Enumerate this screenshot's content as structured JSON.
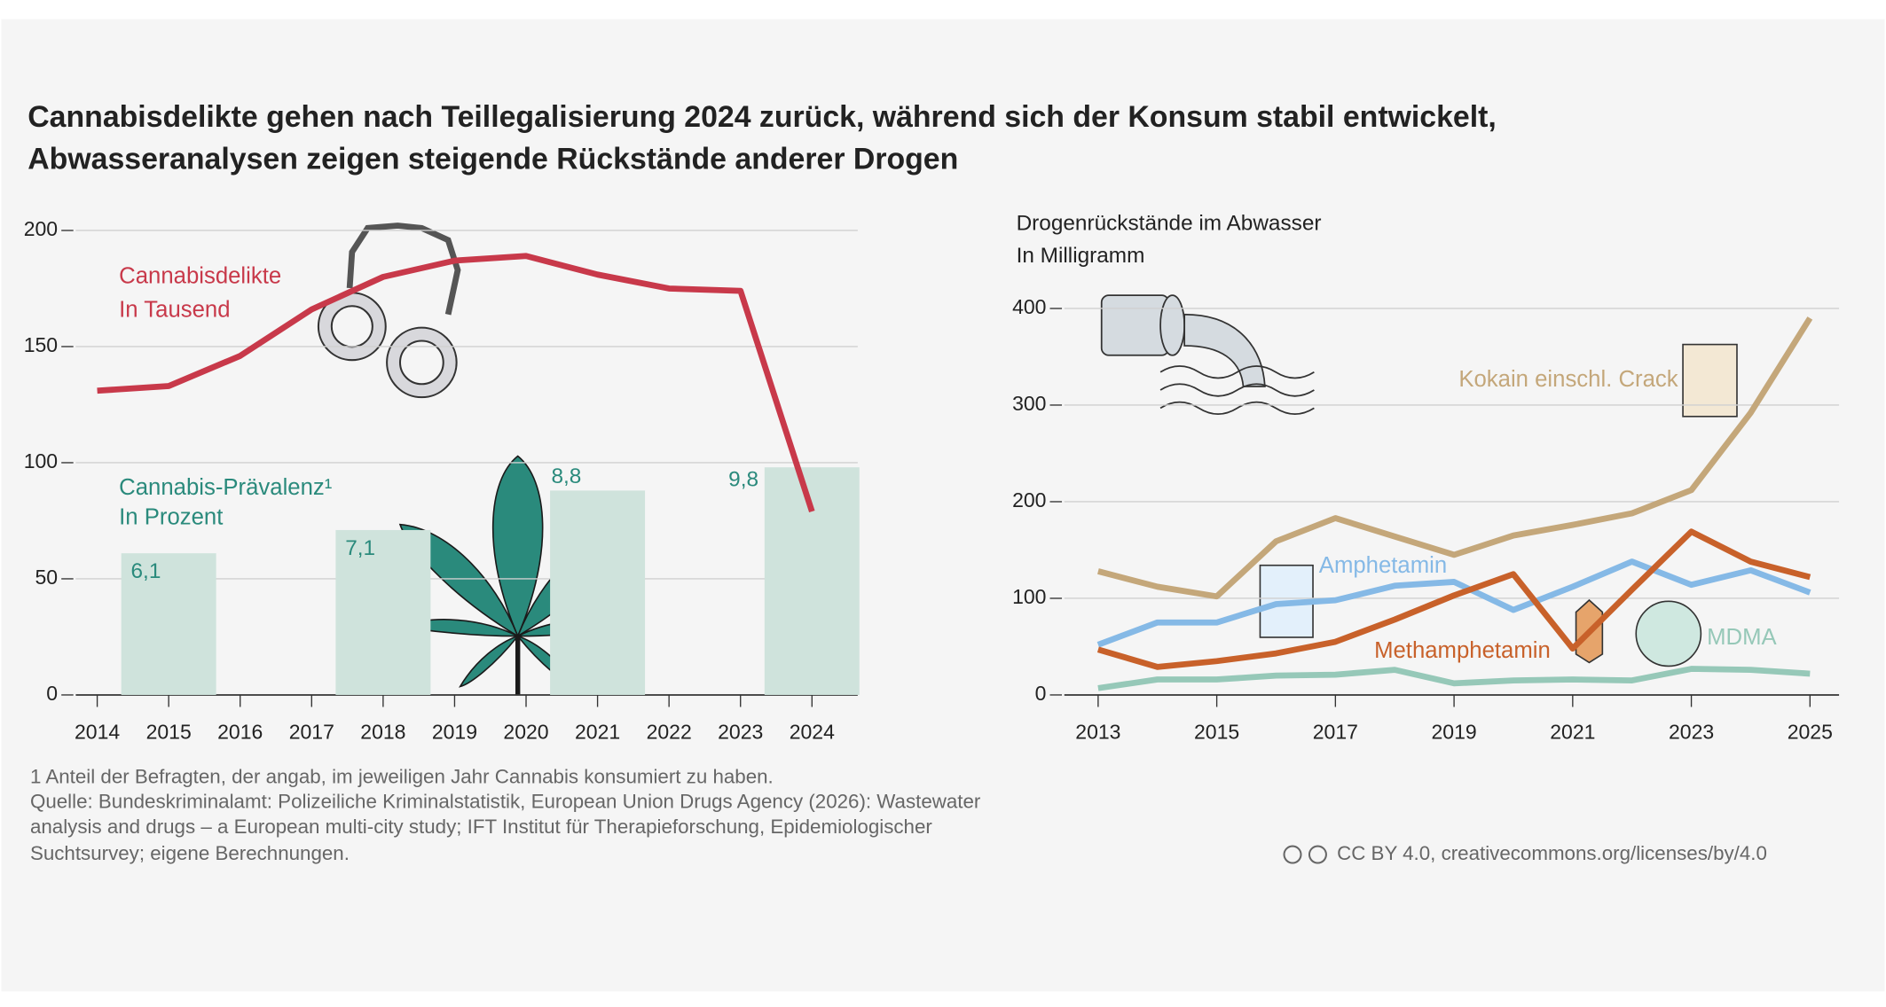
{
  "title": [
    "Cannabisdelikte gehen nach Teillegalisierung 2024 zurück, während sich der Konsum stabil entwickelt,",
    "Abwasseranalysen zeigen steigende Rückstände anderer Drogen"
  ],
  "chart_data": [
    {
      "type": "bar-line",
      "series": [
        {
          "name": "Cannabisdelikte",
          "unit_label": "In Tausend",
          "type": "line",
          "color": "#c8394a",
          "x": [
            2014,
            2015,
            2016,
            2017,
            2018,
            2019,
            2020,
            2021,
            2022,
            2023,
            2024
          ],
          "values": [
            131,
            133,
            146,
            166,
            180,
            187,
            189,
            181,
            175,
            174,
            79
          ]
        },
        {
          "name": "Cannabis-Prävalenz¹",
          "unit_label": "In Prozent",
          "type": "bar",
          "axis": "y2",
          "color": "#cfe3dc",
          "label_color": "#2a8a7c",
          "x": [
            2015,
            2018,
            2021,
            2024
          ],
          "values": [
            6.1,
            7.1,
            8.8,
            9.8
          ],
          "value_labels": [
            "6,1",
            "7,1",
            "8,8",
            "9,8"
          ]
        }
      ],
      "xlim": [
        2013.7,
        2024.64
      ],
      "xticks": [
        2014,
        2015,
        2016,
        2017,
        2018,
        2019,
        2020,
        2021,
        2022,
        2023,
        2024
      ],
      "ylim": [
        0,
        200
      ],
      "yticks": [
        0,
        50,
        100,
        150,
        200
      ],
      "y2lim": [
        0,
        20
      ],
      "grid": true
    },
    {
      "type": "line",
      "title": "Drogenrückstände im Abwasser",
      "subtitle": "In Milligramm",
      "series": [
        {
          "name": "Kokain einschl. Crack",
          "color": "#c4a77a",
          "x": [
            2013,
            2014,
            2015,
            2016,
            2017,
            2018,
            2019,
            2020,
            2021,
            2022,
            2023,
            2024,
            2025
          ],
          "values": [
            128,
            112,
            102,
            159,
            183,
            164,
            145,
            165,
            176,
            188,
            212,
            292,
            390
          ]
        },
        {
          "name": "Amphetamin",
          "color": "#85b9e6",
          "x": [
            2013,
            2014,
            2015,
            2016,
            2017,
            2018,
            2019,
            2020,
            2021,
            2022,
            2023,
            2024,
            2025
          ],
          "values": [
            52,
            75,
            75,
            94,
            98,
            113,
            117,
            88,
            112,
            138,
            114,
            129,
            106
          ]
        },
        {
          "name": "Methamphetamin",
          "color": "#c8612a",
          "x": [
            2013,
            2014,
            2015,
            2016,
            2017,
            2018,
            2019,
            2020,
            2021,
            2022,
            2023,
            2024,
            2025
          ],
          "values": [
            47,
            29,
            35,
            43,
            55,
            78,
            103,
            125,
            48,
            109,
            169,
            138,
            122
          ]
        },
        {
          "name": "MDMA",
          "color": "#96c8b8",
          "x": [
            2013,
            2014,
            2015,
            2016,
            2017,
            2018,
            2019,
            2020,
            2021,
            2022,
            2023,
            2024,
            2025
          ],
          "values": [
            7,
            16,
            16,
            20,
            21,
            26,
            12,
            15,
            16,
            15,
            27,
            26,
            22
          ]
        }
      ],
      "xlim": [
        2012.43,
        2025.49
      ],
      "xticks": [
        2013,
        2015,
        2017,
        2019,
        2021,
        2023,
        2025
      ],
      "ylim": [
        0,
        400
      ],
      "yticks": [
        0,
        100,
        200,
        300,
        400
      ],
      "grid": true
    }
  ],
  "footnote": "1  Anteil der Befragten, der angab, im jeweiligen Jahr Cannabis konsumiert zu haben.",
  "source": [
    "Quelle: Bundeskriminalamt: Polizeiliche Kriminalstatistik, European Union Drugs Agency (2026): Wastewater",
    "analysis and drugs – a European multi-city study; IFT Institut für Therapieforschung, Epidemiologischer",
    "Suchtsurvey; eigene Berechnungen."
  ],
  "license": "CC BY 4.0, creativecommons.org/licenses/by/4.0"
}
